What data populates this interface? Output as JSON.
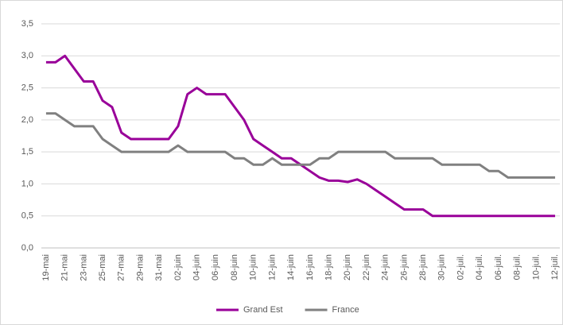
{
  "chart_data": {
    "type": "line",
    "categories": [
      "19-mai",
      null,
      "21-mai",
      null,
      "23-mai",
      null,
      "25-mai",
      null,
      "27-mai",
      null,
      "29-mai",
      null,
      "31-mai",
      null,
      "02-juin",
      null,
      "04-juin",
      null,
      "06-juin",
      null,
      "08-juin",
      null,
      "10-juin",
      null,
      "12-juin",
      null,
      "14-juin",
      null,
      "16-juin",
      null,
      "18-juin",
      null,
      "20-juin",
      null,
      "22-juin",
      null,
      "24-juin",
      null,
      "26-juin",
      null,
      "28-juin",
      null,
      "30-juin",
      null,
      "02-juil.",
      null,
      "04-juil.",
      null,
      "06-juil.",
      null,
      "08-juil.",
      null,
      "10-juil.",
      null,
      "12-juil."
    ],
    "series": [
      {
        "name": "Grand Est",
        "color": "#990099",
        "values": [
          2.9,
          2.9,
          3.0,
          2.8,
          2.6,
          2.6,
          2.3,
          2.2,
          1.8,
          1.7,
          1.7,
          1.7,
          1.7,
          1.7,
          1.9,
          2.4,
          2.5,
          2.4,
          2.4,
          2.4,
          2.2,
          2.0,
          1.7,
          1.6,
          1.5,
          1.4,
          1.4,
          1.3,
          1.2,
          1.1,
          1.05,
          1.05,
          1.03,
          1.07,
          1.0,
          0.9,
          0.8,
          0.7,
          0.6,
          0.6,
          0.6,
          0.5,
          0.5,
          0.5,
          0.5,
          0.5,
          0.5,
          0.5,
          0.5,
          0.5,
          0.5,
          0.5,
          0.5,
          0.5,
          0.5
        ]
      },
      {
        "name": "France",
        "color": "#808080",
        "values": [
          2.1,
          2.1,
          2.0,
          1.9,
          1.9,
          1.9,
          1.7,
          1.6,
          1.5,
          1.5,
          1.5,
          1.5,
          1.5,
          1.5,
          1.6,
          1.5,
          1.5,
          1.5,
          1.5,
          1.5,
          1.4,
          1.4,
          1.3,
          1.3,
          1.4,
          1.3,
          1.3,
          1.3,
          1.3,
          1.4,
          1.4,
          1.5,
          1.5,
          1.5,
          1.5,
          1.5,
          1.5,
          1.4,
          1.4,
          1.4,
          1.4,
          1.4,
          1.3,
          1.3,
          1.3,
          1.3,
          1.3,
          1.2,
          1.2,
          1.1,
          1.1,
          1.1,
          1.1,
          1.1,
          1.1
        ]
      }
    ],
    "ylim": [
      0,
      3.5
    ],
    "yticks": [
      {
        "value": 0,
        "label": "0,0"
      },
      {
        "value": 0.5,
        "label": "0,5"
      },
      {
        "value": 1,
        "label": "1,0"
      },
      {
        "value": 1.5,
        "label": "1,5"
      },
      {
        "value": 2,
        "label": "2,0"
      },
      {
        "value": 2.5,
        "label": "2,5"
      },
      {
        "value": 3,
        "label": "3,0"
      },
      {
        "value": 3.5,
        "label": "3,5"
      }
    ],
    "grid": true,
    "legend": "bottom"
  }
}
